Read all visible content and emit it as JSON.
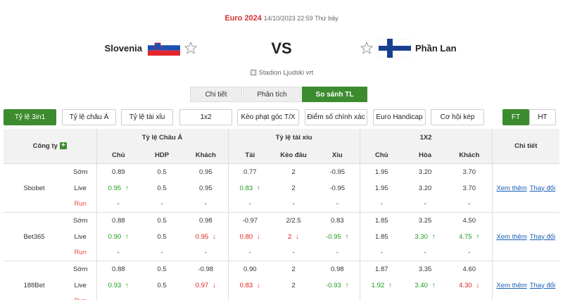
{
  "header": {
    "league": "Euro 2024",
    "datetime": "14/10/2023 22:59 Thứ bảy",
    "home": "Slovenia",
    "vs": "VS",
    "away": "Phần Lan",
    "venue": "Stadion Ljudski vrt"
  },
  "tabs": {
    "items": [
      "Chi tiết",
      "Phân tích",
      "So sánh TL"
    ],
    "active": 2
  },
  "filters": {
    "items": [
      "Tỷ lệ 3in1",
      "Tỷ lệ châu Á",
      "Tỷ lệ tài xỉu",
      "1x2",
      "Kèo phạt góc T/X",
      "Điểm số chính xác",
      "Euro Handicap",
      "Cơ hội kép"
    ],
    "active": 0
  },
  "periods": {
    "items": [
      "FT",
      "HT"
    ],
    "active": 0
  },
  "table": {
    "company": "Công ty",
    "groups": [
      "Tỷ lệ Châu Á",
      "Tỷ lệ tài xỉu",
      "1X2"
    ],
    "detail": "Chi tiết",
    "columns": [
      "Chủ",
      "HDP",
      "Khách",
      "Tài",
      "Kèo đầu",
      "Xỉu",
      "Chủ",
      "Hòa",
      "Khách"
    ],
    "bookmakers": [
      {
        "name": "Sbobet",
        "links": [
          "Xem thêm",
          "Thay đổi"
        ],
        "lines": [
          {
            "label": "Sớm",
            "cells": [
              "0.89",
              "0.5",
              "0.95",
              "0.77",
              "2",
              "-0.95",
              "1.95",
              "3.20",
              "3.70"
            ],
            "trends": [
              null,
              null,
              null,
              null,
              null,
              null,
              null,
              null,
              null
            ]
          },
          {
            "label": "Live",
            "cells": [
              "0.95",
              "0.5",
              "0.95",
              "0.83",
              "2",
              "-0.95",
              "1.95",
              "3.20",
              "3.70"
            ],
            "trends": [
              "up",
              null,
              null,
              "up",
              null,
              null,
              null,
              null,
              null
            ]
          },
          {
            "label": "Run",
            "cells": [
              "-",
              "-",
              "-",
              "-",
              "-",
              "-",
              "-",
              "-",
              "-"
            ],
            "trends": [
              null,
              null,
              null,
              null,
              null,
              null,
              null,
              null,
              null
            ]
          }
        ]
      },
      {
        "name": "Bet365",
        "links": [
          "Xem thêm",
          "Thay đổi"
        ],
        "lines": [
          {
            "label": "Sớm",
            "cells": [
              "0.88",
              "0.5",
              "0.98",
              "-0.97",
              "2/2.5",
              "0.83",
              "1.85",
              "3.25",
              "4.50"
            ],
            "trends": [
              null,
              null,
              null,
              null,
              null,
              null,
              null,
              null,
              null
            ]
          },
          {
            "label": "Live",
            "cells": [
              "0.90",
              "0.5",
              "0.95",
              "0.80",
              "2",
              "-0.95",
              "1.85",
              "3.30",
              "4.75"
            ],
            "trends": [
              "up",
              null,
              "down",
              "down",
              "down",
              "up",
              null,
              "up",
              "up"
            ]
          },
          {
            "label": "Run",
            "cells": [
              "-",
              "-",
              "-",
              "-",
              "-",
              "-",
              "-",
              "-",
              "-"
            ],
            "trends": [
              null,
              null,
              null,
              null,
              null,
              null,
              null,
              null,
              null
            ]
          }
        ]
      },
      {
        "name": "188Bet",
        "links": [
          "Xem thêm",
          "Thay đổi"
        ],
        "lines": [
          {
            "label": "Sớm",
            "cells": [
              "0.88",
              "0.5",
              "-0.98",
              "0.90",
              "2",
              "0.98",
              "1.87",
              "3.35",
              "4.60"
            ],
            "trends": [
              null,
              null,
              null,
              null,
              null,
              null,
              null,
              null,
              null
            ]
          },
          {
            "label": "Live",
            "cells": [
              "0.93",
              "0.5",
              "0.97",
              "0.83",
              "2",
              "-0.93",
              "1.92",
              "3.40",
              "4.30"
            ],
            "trends": [
              "up",
              null,
              "down",
              "down",
              null,
              "up",
              "up",
              "up",
              "down"
            ]
          },
          {
            "label": "Run",
            "cells": [
              "-",
              "-",
              "-",
              "-",
              "-",
              "-",
              "-",
              "-",
              "-"
            ],
            "trends": [
              null,
              null,
              null,
              null,
              null,
              null,
              null,
              null,
              null
            ]
          }
        ]
      }
    ]
  }
}
